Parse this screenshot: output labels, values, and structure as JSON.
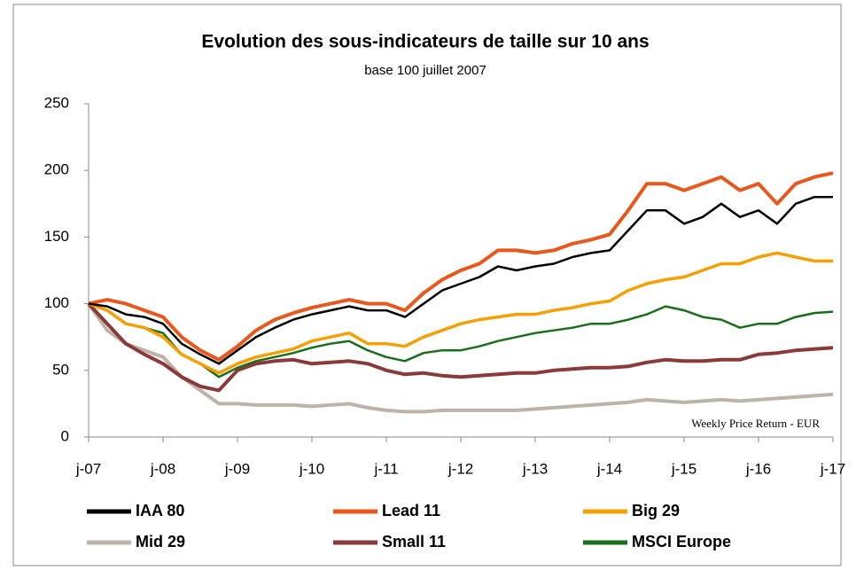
{
  "chart_data": {
    "type": "line",
    "title": "Evolution des sous-indicateurs de taille sur 10 ans",
    "subtitle": "base 100 juillet 2007",
    "annotation": "Weekly Price Return - EUR",
    "legend": "bottom",
    "grid": false,
    "categories": [
      "j-07",
      null,
      null,
      null,
      "j-08",
      null,
      null,
      null,
      "j-09",
      null,
      null,
      null,
      "j-10",
      null,
      null,
      null,
      "j-11",
      null,
      null,
      null,
      "j-12",
      null,
      null,
      null,
      "j-13",
      null,
      null,
      null,
      "j-14",
      null,
      null,
      null,
      "j-15",
      null,
      null,
      null,
      "j-16",
      null,
      null,
      null,
      "j-17"
    ],
    "ylim": [
      0,
      250
    ],
    "yticks": [
      0,
      50,
      100,
      150,
      200,
      250
    ],
    "series": [
      {
        "name": "IAA 80",
        "color": "#000000",
        "values": [
          100,
          98,
          92,
          90,
          85,
          70,
          62,
          55,
          65,
          75,
          82,
          88,
          92,
          95,
          98,
          95,
          95,
          90,
          100,
          110,
          115,
          120,
          128,
          125,
          128,
          130,
          135,
          138,
          140,
          155,
          170,
          170,
          160,
          165,
          175,
          165,
          170,
          160,
          175,
          180,
          180
        ]
      },
      {
        "name": "Lead 11",
        "color": "#e8581c",
        "values": [
          100,
          103,
          100,
          95,
          90,
          75,
          65,
          58,
          68,
          80,
          88,
          93,
          97,
          100,
          103,
          100,
          100,
          95,
          108,
          118,
          125,
          130,
          140,
          140,
          138,
          140,
          145,
          148,
          152,
          170,
          190,
          190,
          185,
          190,
          195,
          185,
          190,
          175,
          190,
          195,
          198
        ]
      },
      {
        "name": "Big 29",
        "color": "#f5a000",
        "values": [
          100,
          95,
          85,
          82,
          75,
          62,
          55,
          48,
          55,
          60,
          63,
          66,
          72,
          75,
          78,
          70,
          70,
          68,
          75,
          80,
          85,
          88,
          90,
          92,
          92,
          95,
          97,
          100,
          102,
          110,
          115,
          118,
          120,
          125,
          130,
          130,
          135,
          138,
          135,
          132,
          132
        ]
      },
      {
        "name": "Mid 29",
        "color": "#bdb3a6",
        "values": [
          100,
          80,
          70,
          65,
          60,
          45,
          35,
          25,
          25,
          24,
          24,
          24,
          23,
          24,
          25,
          22,
          20,
          19,
          19,
          20,
          20,
          20,
          20,
          20,
          21,
          22,
          23,
          24,
          25,
          26,
          28,
          27,
          26,
          27,
          28,
          27,
          28,
          29,
          30,
          31,
          32
        ]
      },
      {
        "name": "Small 11",
        "color": "#8b3a3a",
        "values": [
          100,
          85,
          70,
          62,
          55,
          45,
          38,
          35,
          50,
          55,
          57,
          58,
          55,
          56,
          57,
          55,
          50,
          47,
          48,
          46,
          45,
          46,
          47,
          48,
          48,
          50,
          51,
          52,
          52,
          53,
          56,
          58,
          57,
          57,
          58,
          58,
          62,
          63,
          65,
          66,
          67
        ]
      },
      {
        "name": "MSCI Europe",
        "color": "#1a6e1a",
        "values": [
          100,
          95,
          85,
          82,
          78,
          62,
          55,
          45,
          52,
          57,
          60,
          63,
          67,
          70,
          72,
          65,
          60,
          57,
          63,
          65,
          65,
          68,
          72,
          75,
          78,
          80,
          82,
          85,
          85,
          88,
          92,
          98,
          95,
          90,
          88,
          82,
          85,
          85,
          90,
          93,
          94
        ]
      }
    ]
  }
}
